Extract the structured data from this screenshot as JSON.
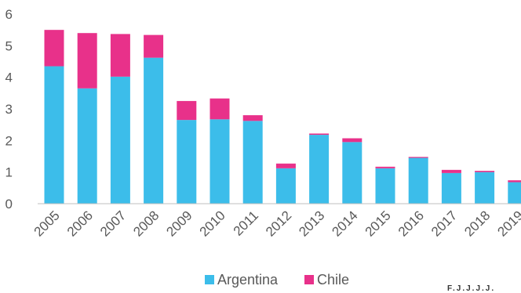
{
  "chart_data": {
    "type": "bar",
    "stacked": true,
    "categories": [
      "2005",
      "2006",
      "2007",
      "2008",
      "2009",
      "2010",
      "2011",
      "2012",
      "2013",
      "2014",
      "2015",
      "2016",
      "2017",
      "2018",
      "2019"
    ],
    "series": [
      {
        "name": "Argentina",
        "color": "#3CBDEA",
        "values": [
          4.35,
          3.65,
          4.02,
          4.62,
          2.65,
          2.67,
          2.62,
          1.12,
          2.18,
          1.95,
          1.12,
          1.45,
          0.97,
          1.0,
          0.68
        ]
      },
      {
        "name": "Chile",
        "color": "#E8318A",
        "values": [
          1.15,
          1.75,
          1.35,
          0.72,
          0.6,
          0.66,
          0.18,
          0.15,
          0.04,
          0.12,
          0.05,
          0.03,
          0.1,
          0.04,
          0.06
        ]
      }
    ],
    "y_ticks": [
      "0",
      "1",
      "2",
      "3",
      "4",
      "5",
      "6"
    ],
    "ylim": [
      0,
      6
    ],
    "grid": false,
    "legend_position": "bottom"
  },
  "footnote": "F.J.J.J.J."
}
